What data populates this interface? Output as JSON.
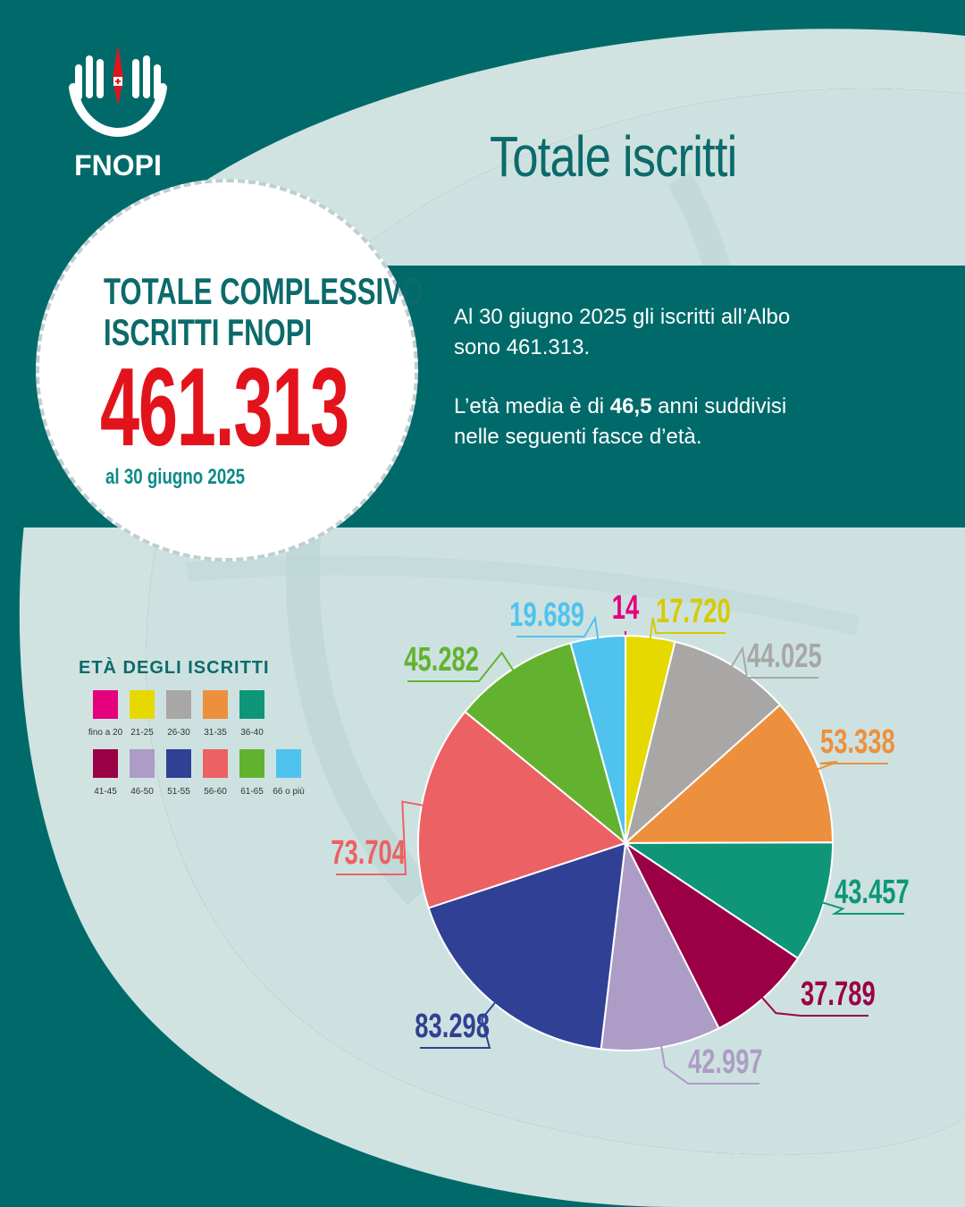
{
  "brand": {
    "name": "FNOPI"
  },
  "page_title": "Totale iscritti",
  "highlight": {
    "heading_line1": "TOTALE COMPLESSIVO",
    "heading_line2": "ISCRITTI FNOPI",
    "total": "461.313",
    "date": "al 30 giugno 2025"
  },
  "intro": {
    "p1": "Al 30 giugno 2025 gli iscritti all’Albo sono 461.313.",
    "p2_before": "L’età media è di ",
    "p2_bold": "46,5",
    "p2_after": " anni suddivisi nelle seguenti fasce d’età."
  },
  "legend": {
    "title": "ETÀ DEGLI ISCRITTI"
  },
  "colors": {
    "teal_dark": "#006a6a",
    "background_light": "#cfe2e0",
    "accent_red": "#e3131c"
  },
  "chart_data": {
    "type": "pie",
    "title": "",
    "legend_position": "left",
    "categories": [
      "fino a 20",
      "21-25",
      "26-30",
      "31-35",
      "36-40",
      "41-45",
      "46-50",
      "51-55",
      "56-60",
      "61-65",
      "66 o più"
    ],
    "values": [
      14,
      17720,
      44025,
      53338,
      43457,
      37789,
      42997,
      83298,
      73704,
      45282,
      19689
    ],
    "value_labels": [
      "14",
      "17.720",
      "44.025",
      "53.338",
      "43.457",
      "37.789",
      "42.997",
      "83.298",
      "73.704",
      "45.282",
      "19.689"
    ],
    "colors": [
      "#e5007e",
      "#e5d900",
      "#a8a7a6",
      "#ed903e",
      "#0f9678",
      "#9b0046",
      "#ad9cc6",
      "#304095",
      "#ec6163",
      "#63b22f",
      "#4fc3ee"
    ],
    "label_colors": [
      "#e5007e",
      "#d8ca00",
      "#a8a7a6",
      "#ed903e",
      "#0f9678",
      "#9b0046",
      "#ad9cc6",
      "#304095",
      "#ec6163",
      "#63b22f",
      "#4fc3ee"
    ]
  }
}
